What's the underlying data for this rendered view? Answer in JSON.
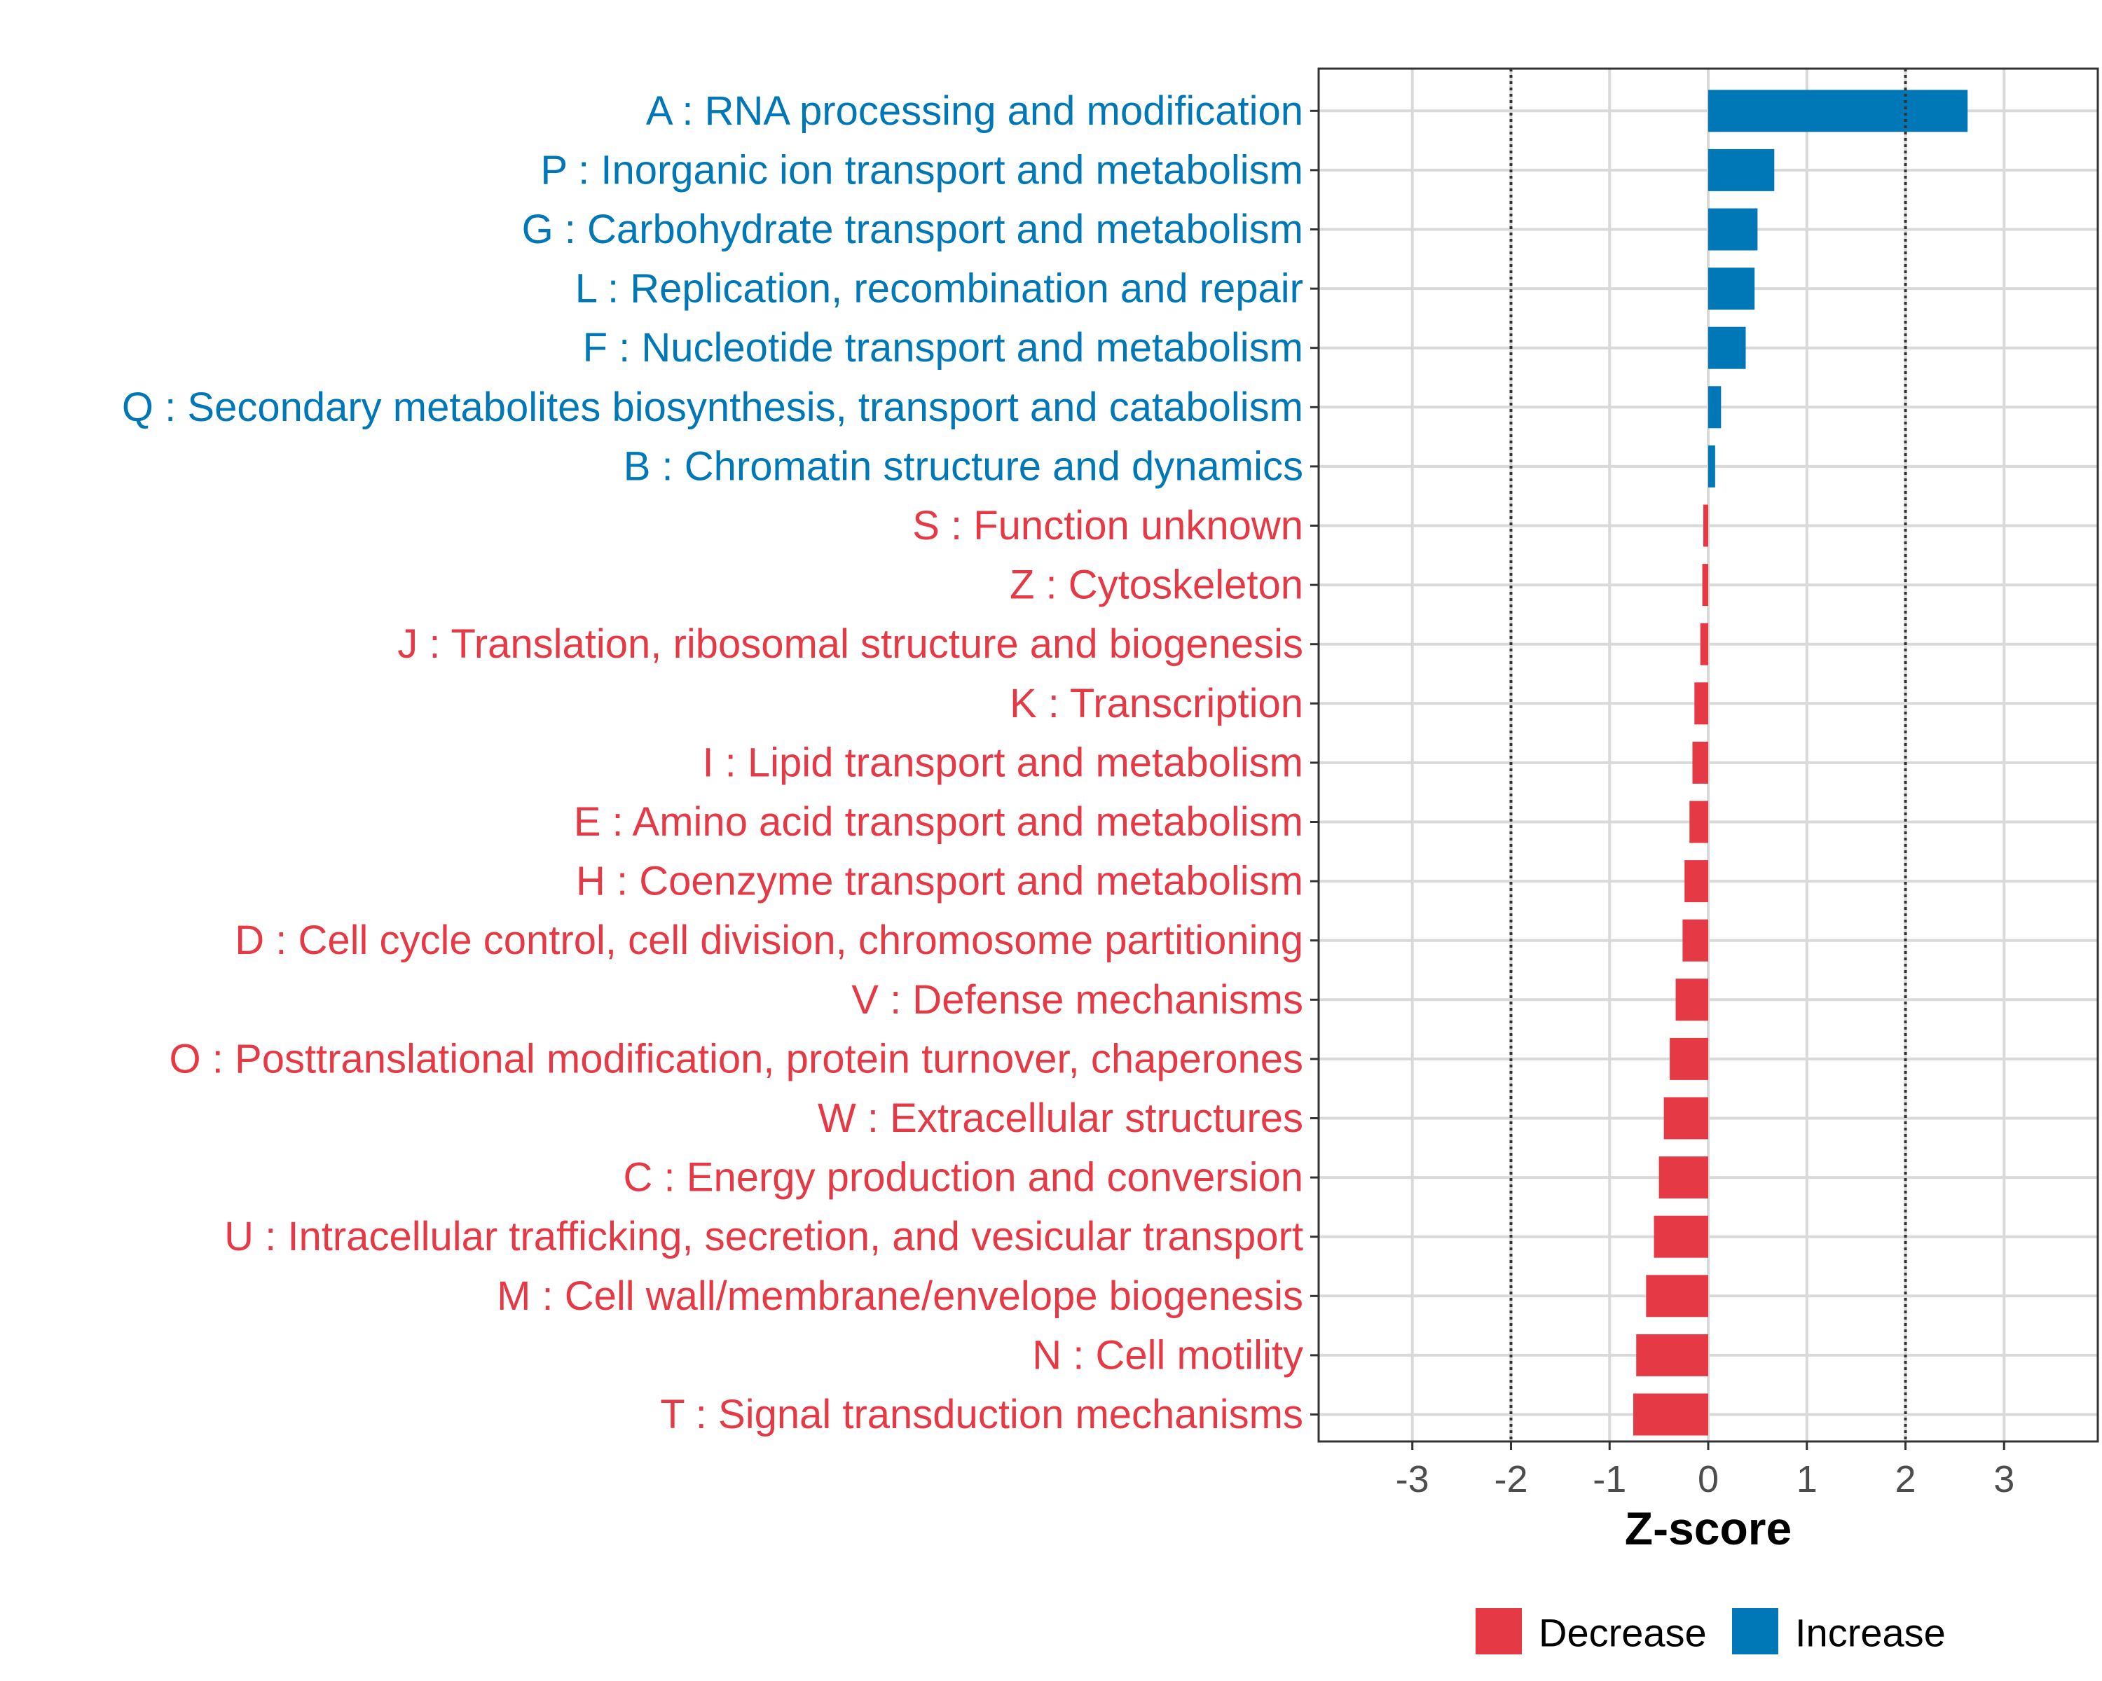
{
  "chart_data": {
    "type": "bar",
    "orientation": "horizontal",
    "title": "",
    "xlabel": "Z-score",
    "ylabel": "",
    "xlim": [
      -3.95,
      3.95
    ],
    "xticks": [
      -3,
      -2,
      -1,
      0,
      1,
      2,
      3
    ],
    "xtick_labels": [
      "-3",
      "-2",
      "-1",
      "0",
      "1",
      "2",
      "3"
    ],
    "reference_lines": [
      -2,
      2
    ],
    "grid": true,
    "legend_position": "bottom",
    "colors": {
      "Decrease": "#E63946",
      "Increase": "#0077B6"
    },
    "legend": [
      {
        "label": "Decrease",
        "key": "Decrease"
      },
      {
        "label": "Increase",
        "key": "Increase"
      }
    ],
    "categories": [
      "A : RNA processing and modification",
      "P : Inorganic ion transport and metabolism",
      "G : Carbohydrate transport and metabolism",
      "L : Replication, recombination and repair",
      "F : Nucleotide transport and metabolism",
      "Q : Secondary metabolites biosynthesis, transport and catabolism",
      "B : Chromatin structure and dynamics",
      "S : Function unknown",
      "Z : Cytoskeleton",
      "J : Translation, ribosomal structure and biogenesis",
      "K : Transcription",
      "I : Lipid transport and metabolism",
      "E : Amino acid transport and metabolism",
      "H : Coenzyme transport and metabolism",
      "D : Cell cycle control, cell division, chromosome partitioning",
      "V : Defense mechanisms",
      "O : Posttranslational modification, protein turnover, chaperones",
      "W : Extracellular structures",
      "C : Energy production and conversion",
      "U : Intracellular trafficking, secretion, and vesicular transport",
      "M : Cell wall/membrane/envelope biogenesis",
      "N : Cell motility",
      "T : Signal transduction mechanisms"
    ],
    "values": [
      2.63,
      0.67,
      0.5,
      0.47,
      0.38,
      0.13,
      0.07,
      -0.05,
      -0.06,
      -0.08,
      -0.14,
      -0.16,
      -0.19,
      -0.24,
      -0.26,
      -0.33,
      -0.39,
      -0.45,
      -0.5,
      -0.55,
      -0.63,
      -0.73,
      -0.76
    ],
    "groups": [
      "Increase",
      "Increase",
      "Increase",
      "Increase",
      "Increase",
      "Increase",
      "Increase",
      "Decrease",
      "Decrease",
      "Decrease",
      "Decrease",
      "Decrease",
      "Decrease",
      "Decrease",
      "Decrease",
      "Decrease",
      "Decrease",
      "Decrease",
      "Decrease",
      "Decrease",
      "Decrease",
      "Decrease",
      "Decrease"
    ]
  }
}
